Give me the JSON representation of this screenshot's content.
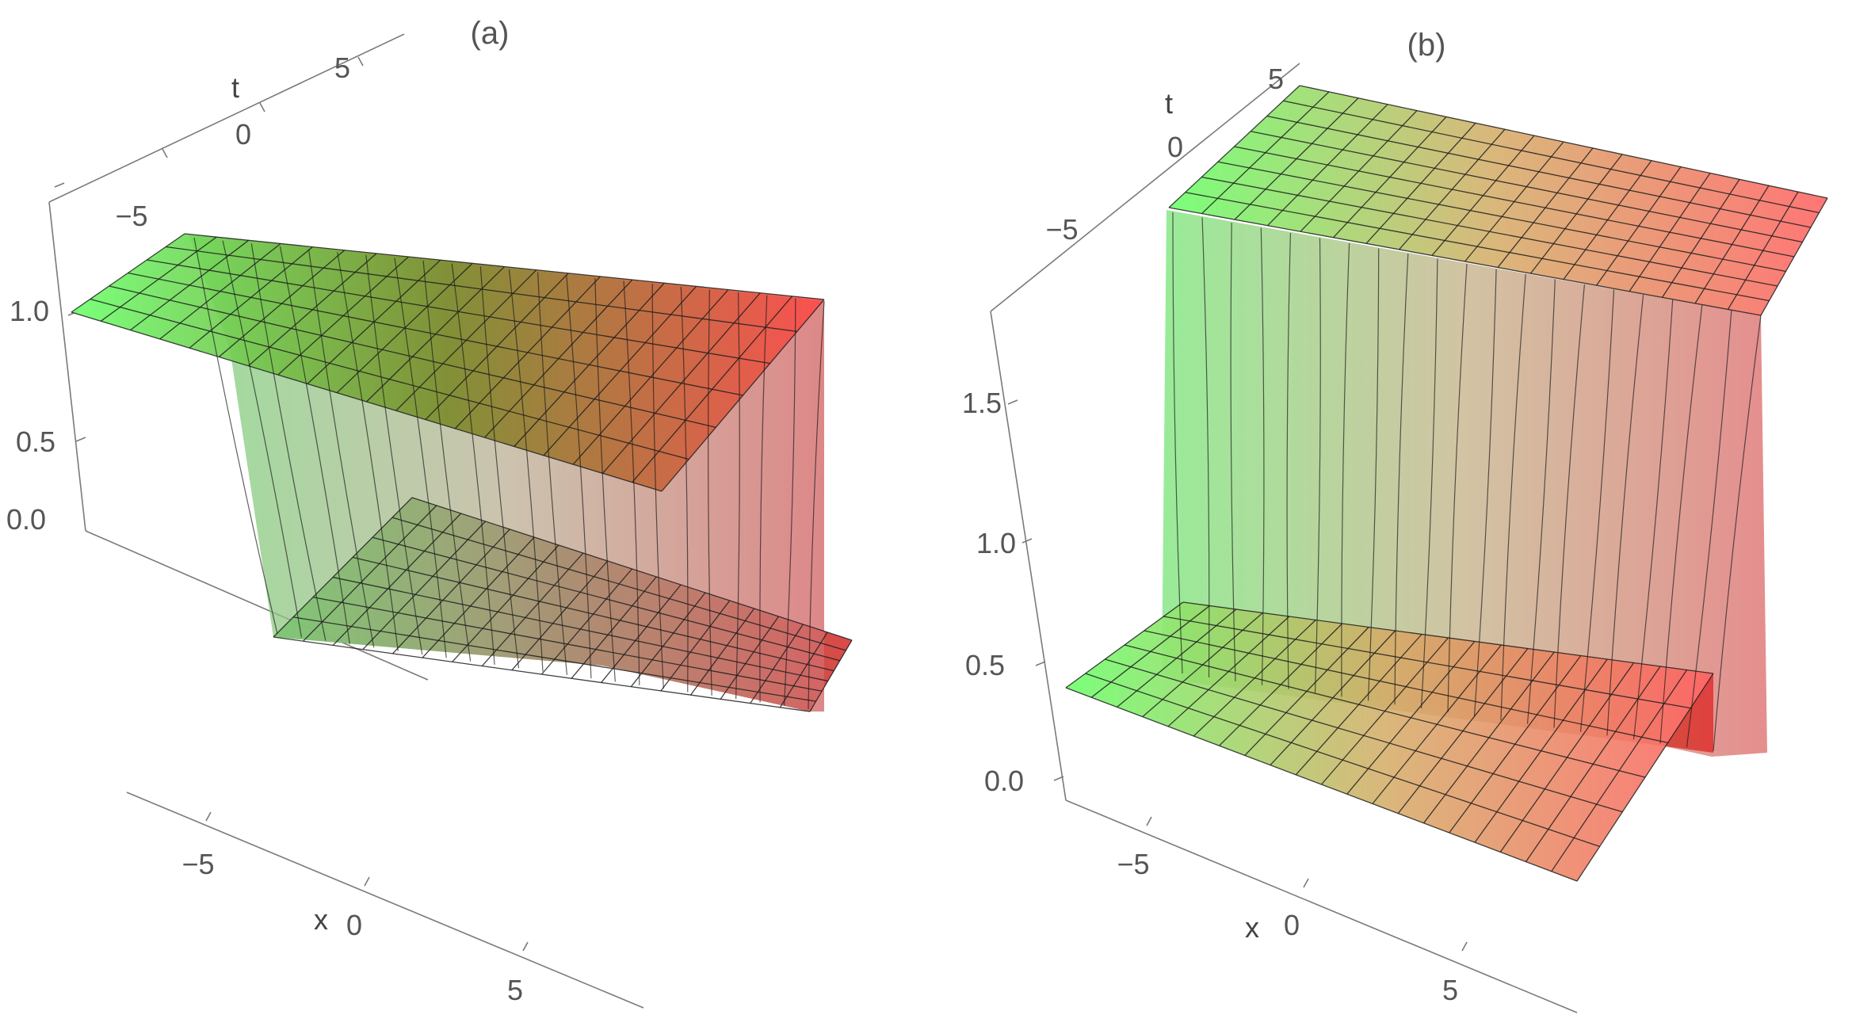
{
  "panels": [
    {
      "label": "(a)",
      "x_axis": {
        "label": "x",
        "ticks": [
          "−5",
          "0",
          "5"
        ]
      },
      "t_axis": {
        "label": "t",
        "ticks": [
          "−5",
          "0",
          "5"
        ]
      },
      "z_axis": {
        "ticks": [
          "0.0",
          "0.5",
          "1.0"
        ]
      }
    },
    {
      "label": "(b)",
      "x_axis": {
        "label": "x",
        "ticks": [
          "−5",
          "0",
          "5"
        ]
      },
      "t_axis": {
        "label": "t",
        "ticks": [
          "−5",
          "0",
          "5"
        ]
      },
      "z_axis": {
        "ticks": [
          "0.0",
          "0.5",
          "1.0",
          "1.5"
        ]
      }
    }
  ],
  "chart_data": [
    {
      "type": "surface",
      "title": "(a)",
      "xlabel": "x",
      "ylabel": "t",
      "xlim": [
        -8,
        8
      ],
      "ylim": [
        -8,
        8
      ],
      "zlim": [
        0,
        1.45
      ],
      "x_ticks": [
        -5,
        0,
        5
      ],
      "y_ticks": [
        -5,
        0,
        5
      ],
      "z_ticks": [
        0.0,
        0.5,
        1.0
      ],
      "description_values": {
        "upper_plateau": 1.4,
        "lower_plateau": 0.5,
        "step_location_x": -3.8,
        "front_orientation": "kink front running along x direction"
      },
      "colormap": [
        "#6cff6c",
        "#ff5a5a"
      ]
    },
    {
      "type": "surface",
      "title": "(b)",
      "xlabel": "x",
      "ylabel": "t",
      "xlim": [
        -8,
        8
      ],
      "ylim": [
        -8,
        8
      ],
      "zlim": [
        0,
        1.8
      ],
      "x_ticks": [
        -5,
        0,
        5
      ],
      "y_ticks": [
        -5,
        0,
        5
      ],
      "z_ticks": [
        0.0,
        0.5,
        1.0,
        1.5
      ],
      "description_values": {
        "upper_plateau": 1.8,
        "lower_plateau": 0.45,
        "step_location_t": -3.5,
        "oscillation_near_step": true
      },
      "colormap": [
        "#6cff6c",
        "#ff5a5a"
      ]
    }
  ]
}
